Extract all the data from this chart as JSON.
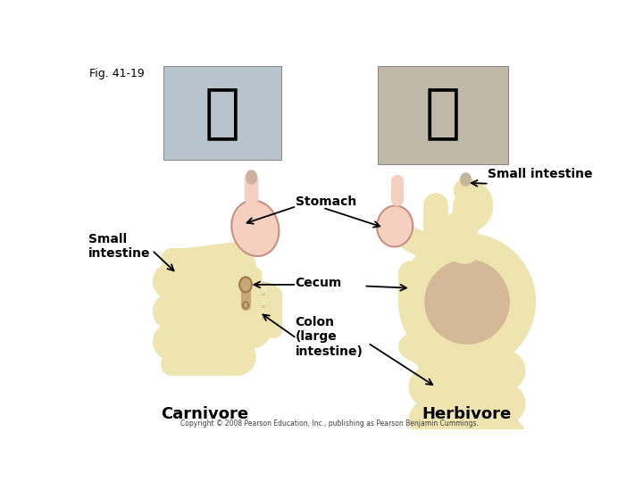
{
  "background_color": "#ffffff",
  "labels": {
    "fig_label": "Fig. 41-19",
    "small_intestine_left": "Small\nintestine",
    "small_intestine_right": "Small intestine",
    "stomach": "Stomach",
    "cecum": "Cecum",
    "colon": "Colon\n(large\nintestine)",
    "carnivore": "Carnivore",
    "herbivore": "Herbivore",
    "copyright": "Copyright © 2008 Pearson Education, Inc., publishing as Pearson Benjamin Cummings."
  },
  "colors": {
    "intestine_fill": "#ede4b0",
    "intestine_edge": "#c8b870",
    "colon_fill": "#e8ddb0",
    "colon_edge": "#c0aa70",
    "herb_colon_fill": "#d4b898",
    "herb_colon_edge": "#b89070",
    "herb_intestine_fill": "#ede4b0",
    "herb_intestine_edge": "#c8b870",
    "stomach_fill": "#f5d0c0",
    "stomach_edge": "#c89080",
    "cecum_fill": "#c8a878",
    "cecum_edge": "#a07848"
  }
}
